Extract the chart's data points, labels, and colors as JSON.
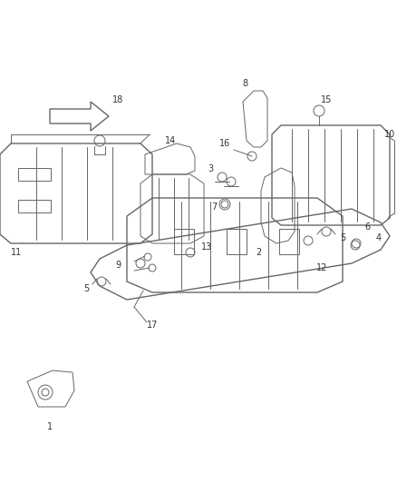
{
  "bg_color": "#ffffff",
  "line_color": "#666666",
  "label_color": "#333333",
  "fig_w": 4.38,
  "fig_h": 5.33,
  "dpi": 100
}
